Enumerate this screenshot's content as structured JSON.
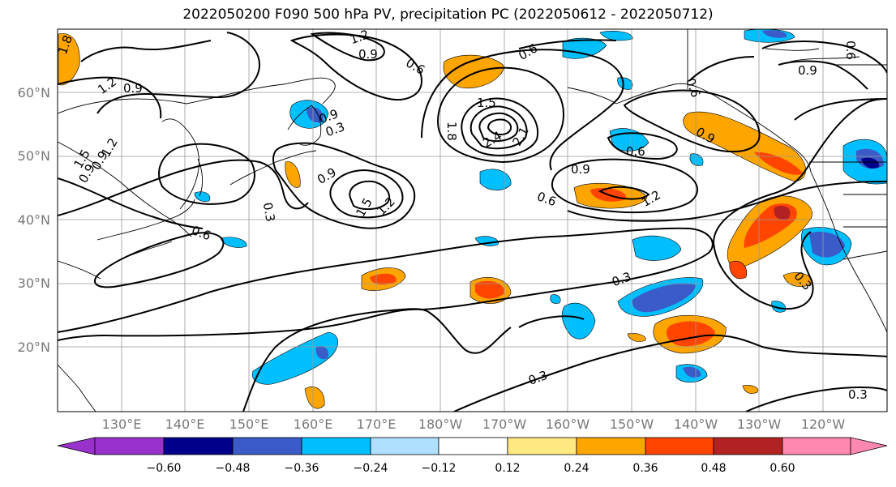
{
  "title": "2022050200 F090 500 hPa PV, precipitation PC (2022050612 - 2022050712)",
  "map": {
    "projection": "cylindrical",
    "lon_range": [
      120,
      -110
    ],
    "lat_range": [
      10,
      70
    ],
    "lat_ticks": [
      "20°N",
      "30°N",
      "40°N",
      "50°N",
      "60°N"
    ],
    "lon_ticks": [
      "130°E",
      "140°E",
      "150°E",
      "160°E",
      "170°E",
      "180°W",
      "170°W",
      "160°W",
      "150°W",
      "140°W",
      "130°W",
      "120°W"
    ],
    "contour_labels": [
      "1.8",
      "1.2",
      "0.9",
      "1.2",
      "0.9",
      "0.6",
      "0.9",
      "0.6",
      "0.3",
      "1.5",
      "1.8",
      "2.4",
      "2.1",
      "0.9",
      "0.6",
      "0.9",
      "0.6",
      "1.2",
      "0.9",
      "1.2",
      "1.5",
      "0.9",
      "1.5",
      "0.6",
      "0.3",
      "0.6",
      "0.3",
      "0.3",
      "0.3",
      "0.3",
      "0.9",
      "1.2",
      "0.6",
      "0.9"
    ]
  },
  "colorbar": {
    "ticks": [
      "−0.60",
      "−0.48",
      "−0.36",
      "−0.24",
      "−0.12",
      "0.12",
      "0.24",
      "0.36",
      "0.48",
      "0.60"
    ],
    "colors": [
      "#9932cc",
      "#00008b",
      "#3a5bc8",
      "#00bfff",
      "#b0e0ff",
      "#ffffff",
      "#ffe980",
      "#ffa500",
      "#ff4500",
      "#b22222",
      "#ff88b0"
    ]
  }
}
